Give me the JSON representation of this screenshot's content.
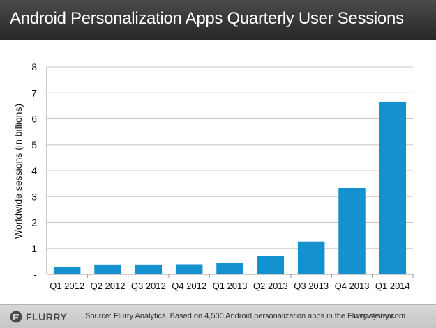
{
  "header": {
    "title": "Android Personalization Apps Quarterly User Sessions"
  },
  "chart_data": {
    "type": "bar",
    "title": "Android Personalization Apps Quarterly User Sessions",
    "ylabel": "Worldwide sessions (in billions)",
    "xlabel": "",
    "categories": [
      "Q1 2012",
      "Q2 2012",
      "Q3 2012",
      "Q4 2012",
      "Q1 2013",
      "Q2 2013",
      "Q3 2013",
      "Q4 2013",
      "Q1 2014"
    ],
    "values": [
      0.28,
      0.38,
      0.38,
      0.39,
      0.45,
      0.72,
      1.27,
      3.33,
      6.66
    ],
    "ylim": [
      0,
      8
    ],
    "yticks": [
      "-",
      "1",
      "2",
      "3",
      "4",
      "5",
      "6",
      "7",
      "8"
    ],
    "grid": true,
    "legend": "none",
    "bar_color": "#1591cf",
    "grid_color": "#c8c8c8"
  },
  "footer": {
    "logo_text": "FLURRY",
    "logo_icon": "flurry-logo-icon",
    "source": "Source: Flurry Analytics. Based on 4,500 Android personalization apps in the Flurry system.",
    "site": "www.flurry.com"
  }
}
